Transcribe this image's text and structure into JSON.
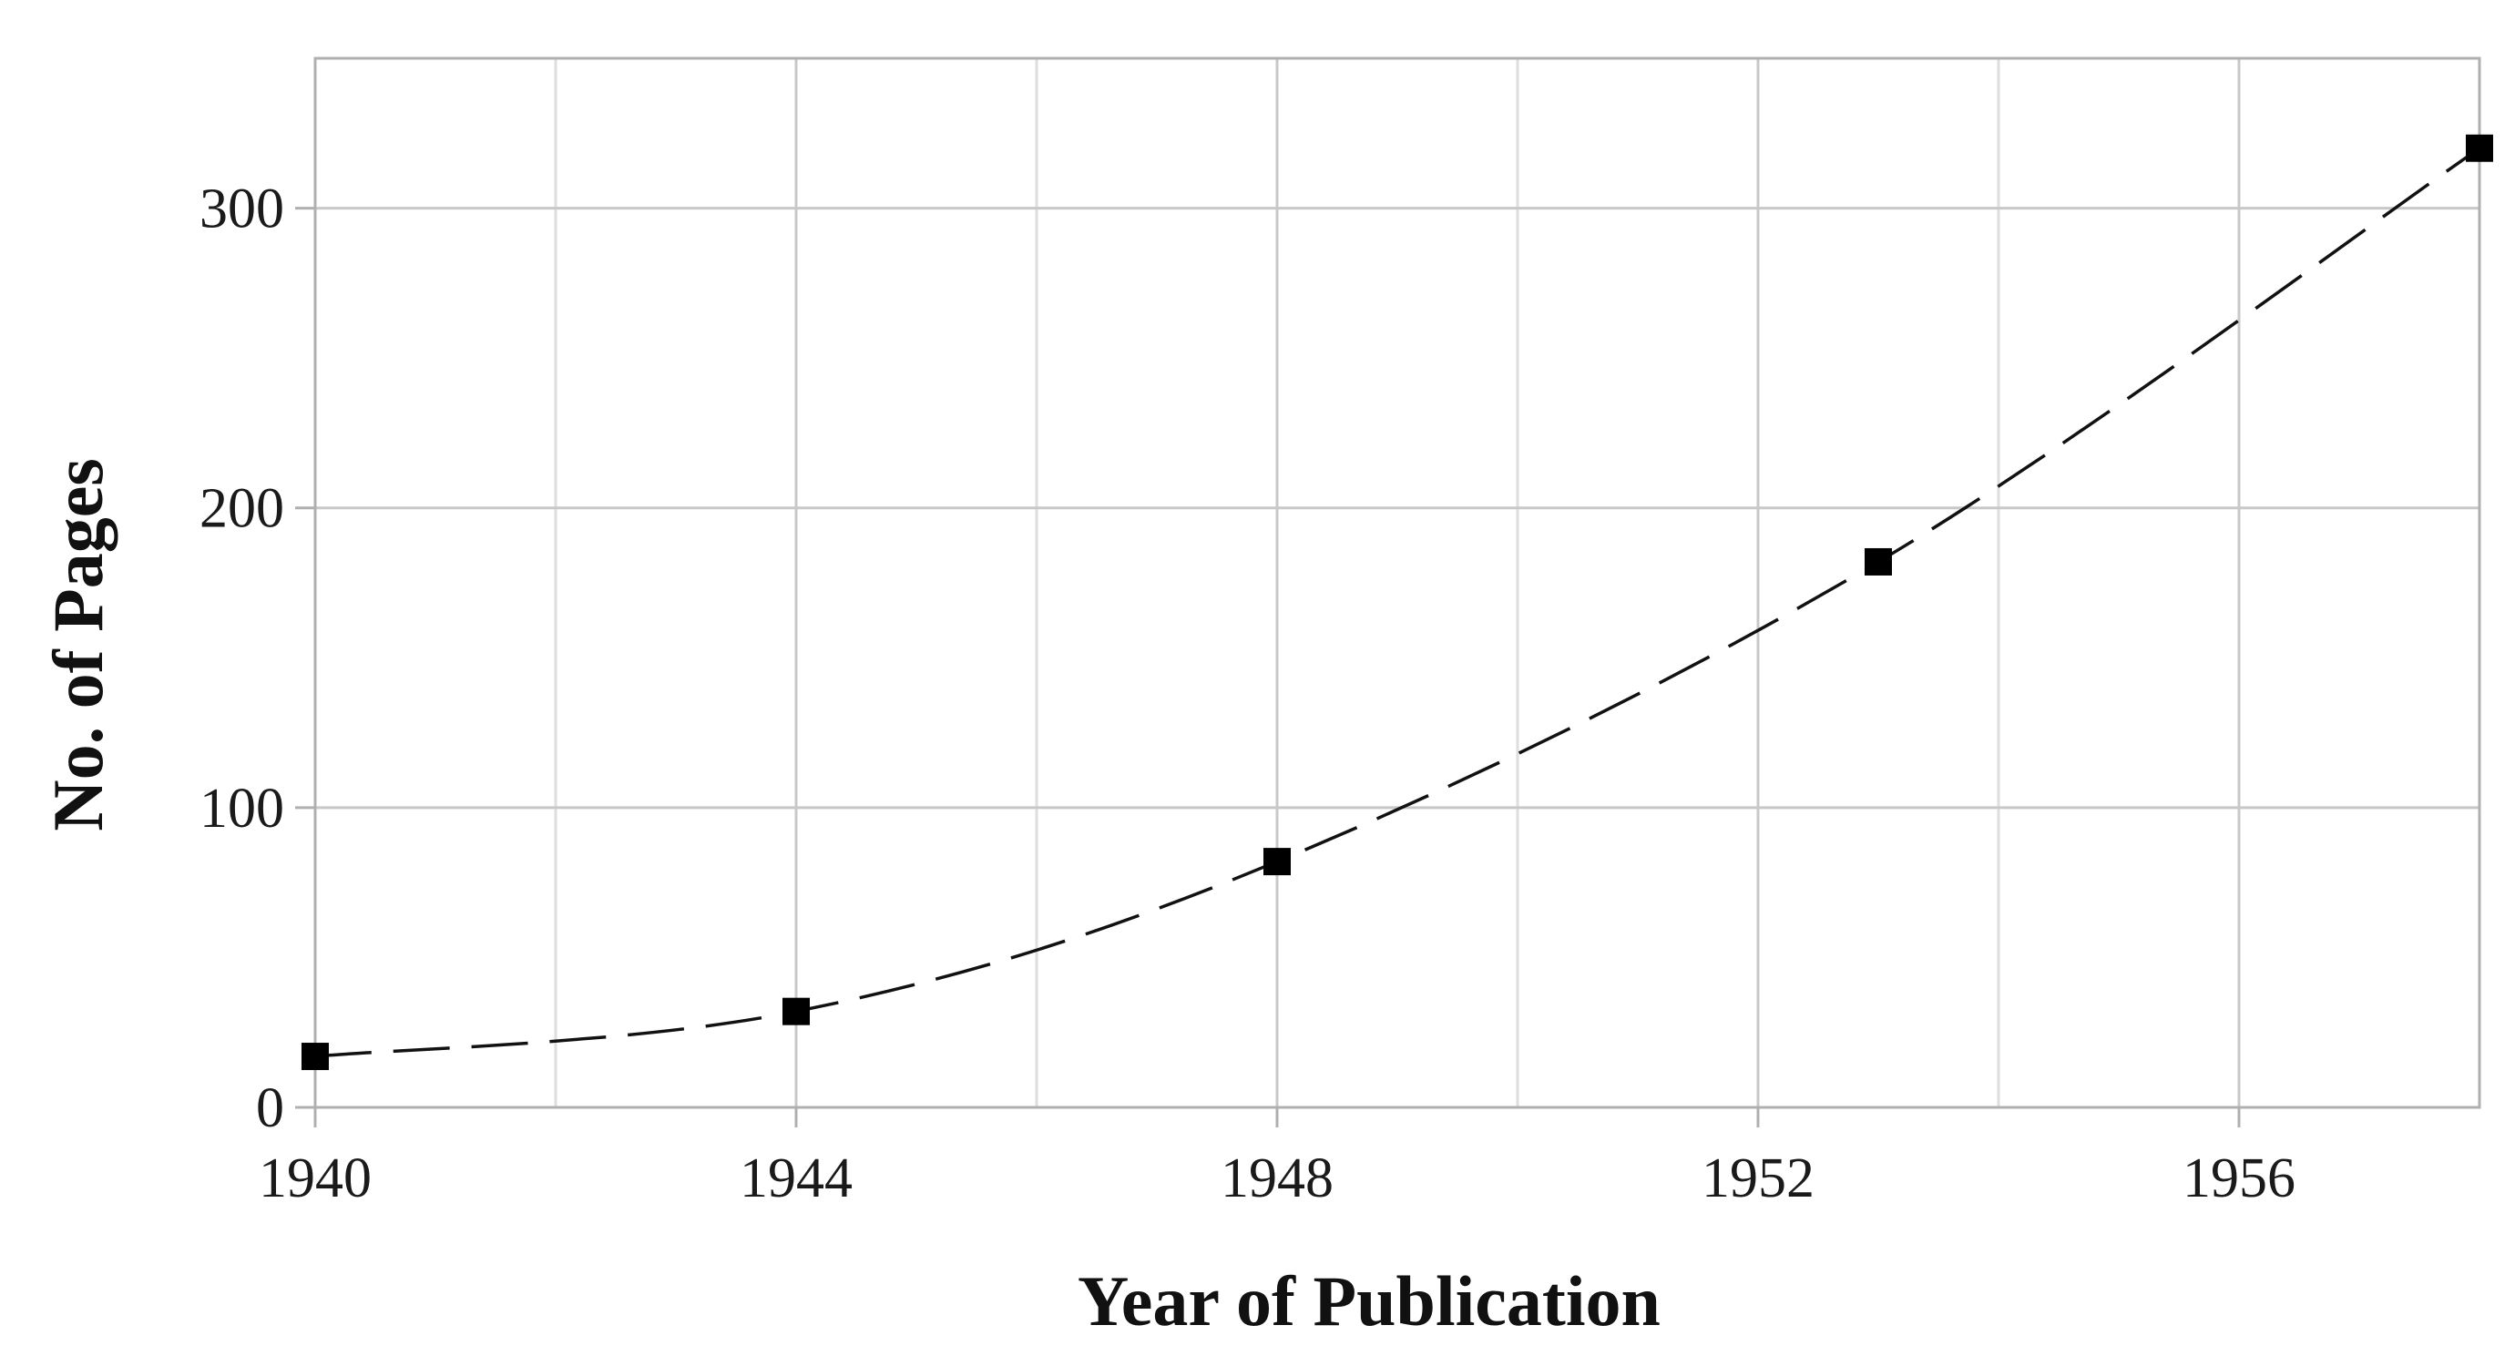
{
  "chart_data": {
    "type": "line",
    "title": "",
    "xlabel": "Year of Publication",
    "ylabel": "No. of Pages",
    "xlim": [
      1940,
      1958
    ],
    "ylim": [
      0,
      350
    ],
    "x_ticks": [
      1940,
      1944,
      1948,
      1952,
      1956
    ],
    "y_ticks": [
      0,
      100,
      200,
      300
    ],
    "x_tick_labels": [
      "1940",
      "1944",
      "1948",
      "1952",
      "1956"
    ],
    "y_tick_labels": [
      "0",
      "100",
      "200",
      "300"
    ],
    "x_minor_grid": [
      1942,
      1946,
      1950,
      1954
    ],
    "grid": true,
    "legend": "none",
    "marker": "square",
    "line_style": "dashed",
    "colors": {
      "line": "#111111",
      "marker": "#000000",
      "grid": "#c8c8c8",
      "frame": "#b0b0b0"
    },
    "series": [
      {
        "x": [
          1940,
          1944,
          1948,
          1953,
          1958
        ],
        "y": [
          17,
          32,
          82,
          182,
          320
        ]
      }
    ]
  }
}
